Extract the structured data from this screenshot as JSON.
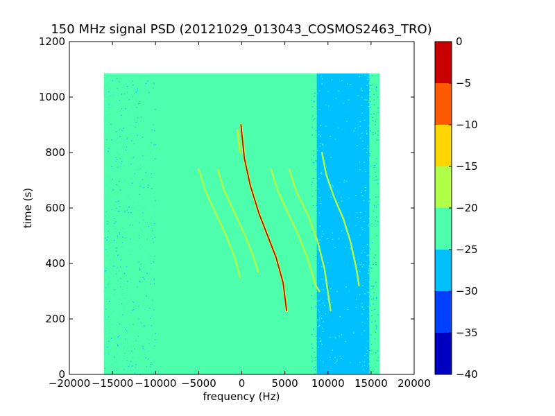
{
  "chart_data": {
    "type": "heatmap",
    "title": "150 MHz signal PSD (20121029_013043_COSMOS2463_TRO)",
    "xlabel": "frequency (Hz)",
    "ylabel": "time (s)",
    "xlim": [
      -20000,
      20000
    ],
    "ylim": [
      0,
      1200
    ],
    "xticks": [
      -20000,
      -15000,
      -10000,
      -5000,
      0,
      5000,
      10000,
      15000,
      20000
    ],
    "xtick_labels": [
      "−20000",
      "−15000",
      "−10000",
      "−5000",
      "0",
      "5000",
      "10000",
      "15000",
      "20000"
    ],
    "yticks": [
      0,
      200,
      400,
      600,
      800,
      1000,
      1200
    ],
    "ytick_labels": [
      "0",
      "200",
      "400",
      "600",
      "800",
      "1000",
      "1200"
    ],
    "data_extent": {
      "x": [
        -16000,
        16000
      ],
      "y": [
        0,
        1085
      ]
    },
    "background_level_band": [
      -25,
      -20
    ],
    "low_noise_region": {
      "x": [
        8000,
        15800
      ],
      "level_band": [
        -30,
        -25
      ]
    },
    "colorbar": {
      "levels": [
        -40,
        -35,
        -30,
        -25,
        -20,
        -15,
        -10,
        -5,
        0
      ],
      "tick_labels": [
        "−40",
        "−35",
        "−30",
        "−25",
        "−20",
        "−15",
        "−10",
        "−5",
        "0"
      ],
      "colors": [
        "#0000c0",
        "#0040ff",
        "#00c0ff",
        "#4dffac",
        "#b0ff48",
        "#ffd700",
        "#ff5a00",
        "#c80000"
      ]
    },
    "traces": [
      {
        "name": "",
        "color": "#c80000",
        "points": [
          [
            -100,
            900
          ],
          [
            300,
            780
          ],
          [
            1000,
            680
          ],
          [
            2000,
            580
          ],
          [
            3000,
            500
          ],
          [
            4000,
            420
          ],
          [
            4800,
            330
          ],
          [
            5200,
            230
          ]
        ]
      },
      {
        "name": "",
        "color": "#ffd700",
        "points": [
          [
            -500,
            880
          ],
          [
            -200,
            800
          ]
        ]
      },
      {
        "name": "",
        "color": "#b0ff48",
        "points": [
          [
            -5000,
            740
          ],
          [
            -4200,
            660
          ],
          [
            -3000,
            580
          ],
          [
            -1800,
            500
          ],
          [
            -800,
            420
          ],
          [
            -200,
            350
          ]
        ]
      },
      {
        "name": "",
        "color": "#b0ff48",
        "points": [
          [
            -2800,
            740
          ],
          [
            -2000,
            660
          ],
          [
            -800,
            580
          ],
          [
            400,
            500
          ],
          [
            1400,
            420
          ],
          [
            1900,
            370
          ]
        ]
      },
      {
        "name": "",
        "color": "#b0ff48",
        "points": [
          [
            3400,
            740
          ],
          [
            4200,
            660
          ],
          [
            5400,
            580
          ],
          [
            6600,
            500
          ],
          [
            7600,
            420
          ],
          [
            8600,
            320
          ],
          [
            9000,
            300
          ]
        ]
      },
      {
        "name": "",
        "color": "#b0ff48",
        "points": [
          [
            5500,
            740
          ],
          [
            6300,
            660
          ],
          [
            7600,
            580
          ],
          [
            8800,
            480
          ],
          [
            9600,
            380
          ],
          [
            10300,
            230
          ]
        ]
      },
      {
        "name": "",
        "color": "#b0ff48",
        "points": [
          [
            9300,
            800
          ],
          [
            9800,
            720
          ],
          [
            10700,
            640
          ],
          [
            11800,
            560
          ],
          [
            12600,
            480
          ],
          [
            13300,
            380
          ],
          [
            13600,
            320
          ]
        ]
      }
    ]
  }
}
